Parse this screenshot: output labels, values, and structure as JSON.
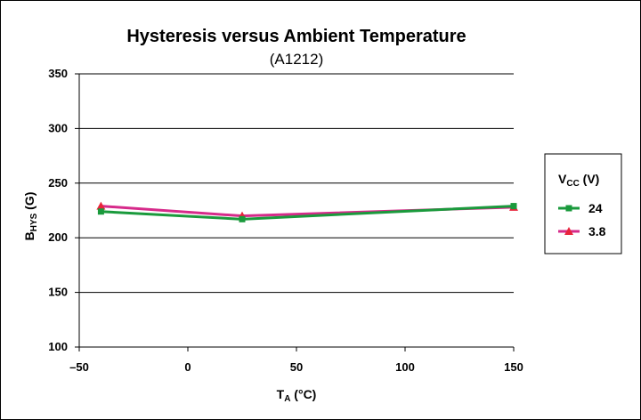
{
  "chart_data": {
    "type": "line",
    "title": "Hysteresis versus Ambient Temperature",
    "subtitle": "(A1212)",
    "xlabel": {
      "main": "T",
      "sub": "A",
      "tail": " (°C)"
    },
    "ylabel": {
      "main": "B",
      "sub": "HYS",
      "tail": " (G)"
    },
    "xlim": [
      -50,
      150
    ],
    "ylim": [
      100,
      350
    ],
    "xticks": [
      -50,
      0,
      50,
      100,
      150
    ],
    "xtick_labels": [
      "–50",
      "0",
      "50",
      "100",
      "150"
    ],
    "yticks": [
      100,
      150,
      200,
      250,
      300,
      350
    ],
    "ytick_labels": [
      "100",
      "150",
      "200",
      "250",
      "300",
      "350"
    ],
    "grid": "horizontal",
    "legend": {
      "title": {
        "main": "V",
        "sub": "CC",
        "tail": " (V)"
      },
      "placement": "right"
    },
    "x": [
      -40,
      25,
      150
    ],
    "series": [
      {
        "name": "24",
        "values": [
          224,
          217,
          229
        ],
        "color": "#1a9a3c",
        "marker": "square"
      },
      {
        "name": "3.8",
        "values": [
          229,
          220,
          228
        ],
        "color": "#d62a8a",
        "marker": "triangle",
        "marker_color": "#e8243c"
      }
    ]
  }
}
